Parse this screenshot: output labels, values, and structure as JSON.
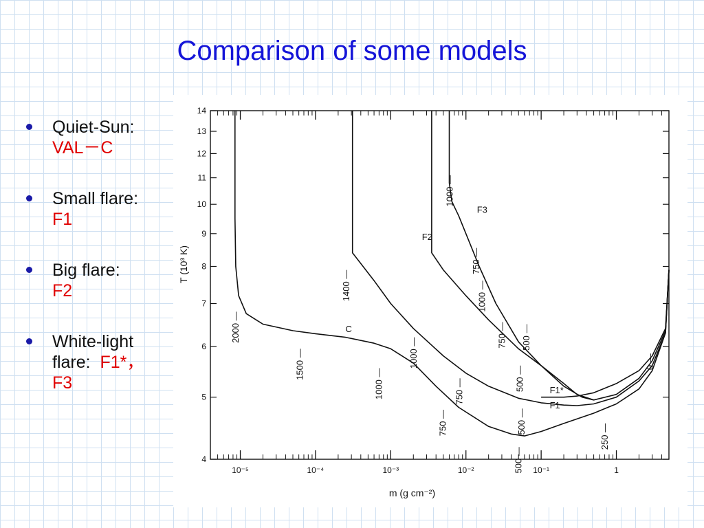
{
  "slide": {
    "title": "Comparison of some models"
  },
  "bullets": [
    {
      "label": "Quiet-Sun:",
      "value": "VAL－C"
    },
    {
      "label": "Small flare:",
      "value": "F1"
    },
    {
      "label": "Big flare:",
      "value": "F2"
    },
    {
      "label": "White-light",
      "label2": "flare:",
      "value": "F1*，",
      "value2": "F3"
    }
  ],
  "colors": {
    "title": "#1414d8",
    "highlight": "#e00000",
    "grid": "#cfe0f1",
    "curve": "#111111"
  },
  "chart_data": {
    "type": "line",
    "xlabel": "m (g cm⁻²)",
    "ylabel": "T (10³ K)",
    "x_scale": "log",
    "y_scale": "log",
    "xlim": [
      4e-06,
      5
    ],
    "ylim": [
      4,
      14
    ],
    "x_ticks": [
      {
        "value": 1e-05,
        "label": "10⁻⁵"
      },
      {
        "value": 0.0001,
        "label": "10⁻⁴"
      },
      {
        "value": 0.001,
        "label": "10⁻³"
      },
      {
        "value": 0.01,
        "label": "10⁻²"
      },
      {
        "value": 0.1,
        "label": "10⁻¹"
      },
      {
        "value": 1,
        "label": "1"
      }
    ],
    "y_ticks": [
      4,
      5,
      6,
      7,
      8,
      9,
      10,
      11,
      12,
      13,
      14
    ],
    "series": [
      {
        "name": "C",
        "x": [
          8.5e-06,
          8.5e-06,
          8.7e-06,
          9.5e-06,
          1.2e-05,
          2e-05,
          5e-05,
          0.0001,
          0.00025,
          0.0006,
          0.001,
          0.002,
          0.004,
          0.008,
          0.02,
          0.04,
          0.06,
          0.1,
          0.2,
          0.5,
          1,
          2,
          3,
          4.5,
          5
        ],
        "y": [
          14,
          9.5,
          8.0,
          7.2,
          6.75,
          6.5,
          6.35,
          6.28,
          6.2,
          6.07,
          5.95,
          5.65,
          5.2,
          4.82,
          4.5,
          4.38,
          4.35,
          4.42,
          4.55,
          4.72,
          4.88,
          5.15,
          5.5,
          6.3,
          7.9
        ]
      },
      {
        "name": "F1",
        "x": [
          0.00031,
          0.00031,
          0.0006,
          0.001,
          0.002,
          0.005,
          0.01,
          0.02,
          0.05,
          0.1,
          0.2,
          0.3,
          0.5,
          1,
          2,
          3,
          4.5,
          5
        ],
        "y": [
          14,
          8.4,
          7.6,
          7.0,
          6.4,
          5.8,
          5.45,
          5.2,
          4.98,
          4.9,
          4.86,
          4.85,
          4.88,
          5.0,
          5.3,
          5.6,
          6.3,
          7.9
        ]
      },
      {
        "name": "F1*",
        "x": [
          0.1,
          0.2,
          0.3,
          0.5,
          1,
          2,
          3,
          4.5,
          5
        ],
        "y": [
          5.0,
          5.0,
          5.02,
          5.08,
          5.25,
          5.5,
          5.8,
          6.4,
          7.9
        ]
      },
      {
        "name": "F2",
        "x": [
          0.0035,
          0.0035,
          0.005,
          0.01,
          0.02,
          0.05,
          0.1,
          0.2,
          0.3,
          0.5,
          1,
          2,
          3,
          4.5,
          5
        ],
        "y": [
          14,
          8.4,
          7.9,
          7.2,
          6.6,
          5.95,
          5.6,
          5.25,
          5.05,
          4.95,
          5.05,
          5.35,
          5.7,
          6.35,
          7.9
        ]
      },
      {
        "name": "F3",
        "x": [
          0.006,
          0.006,
          0.0065,
          0.0072,
          0.008,
          0.01,
          0.015,
          0.025,
          0.05,
          0.1,
          0.2,
          0.35,
          0.5
        ],
        "y": [
          14,
          10.8,
          10.1,
          9.85,
          9.6,
          9.0,
          8.0,
          7.0,
          6.1,
          5.6,
          5.2,
          5.0,
          4.95
        ]
      }
    ],
    "annotations": [
      {
        "text": "2000",
        "x": 9.5e-06,
        "y": 6.8
      },
      {
        "text": "1500",
        "x": 6.8e-05,
        "y": 5.95
      },
      {
        "text": "1000",
        "x": 0.00076,
        "y": 5.55
      },
      {
        "text": "750",
        "x": 0.0054,
        "y": 4.78
      },
      {
        "text": "500",
        "x": 0.055,
        "y": 4.18
      },
      {
        "text": "1400",
        "x": 0.00028,
        "y": 7.9
      },
      {
        "text": "1000",
        "x": 0.0022,
        "y": 6.2
      },
      {
        "text": "750",
        "x": 0.009,
        "y": 5.35
      },
      {
        "text": "500",
        "x": 0.06,
        "y": 4.8
      },
      {
        "text": "250",
        "x": 0.77,
        "y": 4.55
      },
      {
        "text": "0",
        "x": 3.1,
        "y": 5.85
      },
      {
        "text": "1000",
        "x": 0.018,
        "y": 7.6
      },
      {
        "text": "750",
        "x": 0.033,
        "y": 6.55
      },
      {
        "text": "500",
        "x": 0.057,
        "y": 5.6
      },
      {
        "text": "1000",
        "x": 0.0067,
        "y": 11.1
      },
      {
        "text": "750",
        "x": 0.015,
        "y": 8.55
      },
      {
        "text": "500",
        "x": 0.07,
        "y": 6.5
      },
      {
        "text": "C",
        "x": 0.00025,
        "y": 6.32
      },
      {
        "text": "F1",
        "x": 0.13,
        "y": 4.8
      },
      {
        "text": "F1*",
        "x": 0.13,
        "y": 5.07
      },
      {
        "text": "F2",
        "x": 0.0026,
        "y": 8.8
      },
      {
        "text": "F3",
        "x": 0.014,
        "y": 9.7
      }
    ],
    "grid": false
  }
}
